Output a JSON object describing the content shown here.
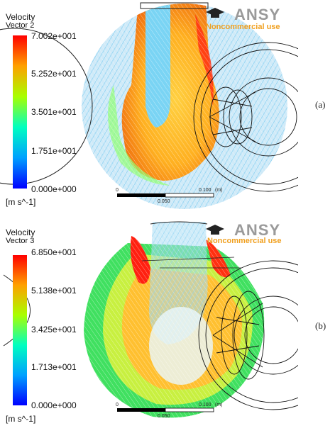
{
  "panels": [
    {
      "id": "a",
      "label": "(a)",
      "title": "Velocity",
      "subtitle": "Vector 2",
      "ticks": [
        "7.002e+001",
        "5.252e+001",
        "3.501e+001",
        "1.751e+001",
        "0.000e+000"
      ],
      "units": "[m s^-1]",
      "logo": "ANSY",
      "watermark": "Noncommercial use",
      "scale": {
        "start": "0",
        "mid": "0.050",
        "end": "0.100",
        "unit": "(m)"
      }
    },
    {
      "id": "b",
      "label": "(b)",
      "title": "Velocity",
      "subtitle": "Vector 3",
      "ticks": [
        "6.850e+001",
        "5.138e+001",
        "3.425e+001",
        "1.713e+001",
        "0.000e+000"
      ],
      "units": "[m s^-1]",
      "logo": "ANSY",
      "watermark": "Noncommercial use",
      "scale": {
        "start": "0",
        "mid": "0.050",
        "end": "0.100",
        "unit": "(m)"
      }
    }
  ],
  "colors": {
    "colormap": [
      "#0000ff",
      "#00c8ff",
      "#00ff80",
      "#c8ff00",
      "#ffa000",
      "#ff0000"
    ],
    "wheel_stroke": "#111111",
    "logo_orange": "#f0a020"
  }
}
